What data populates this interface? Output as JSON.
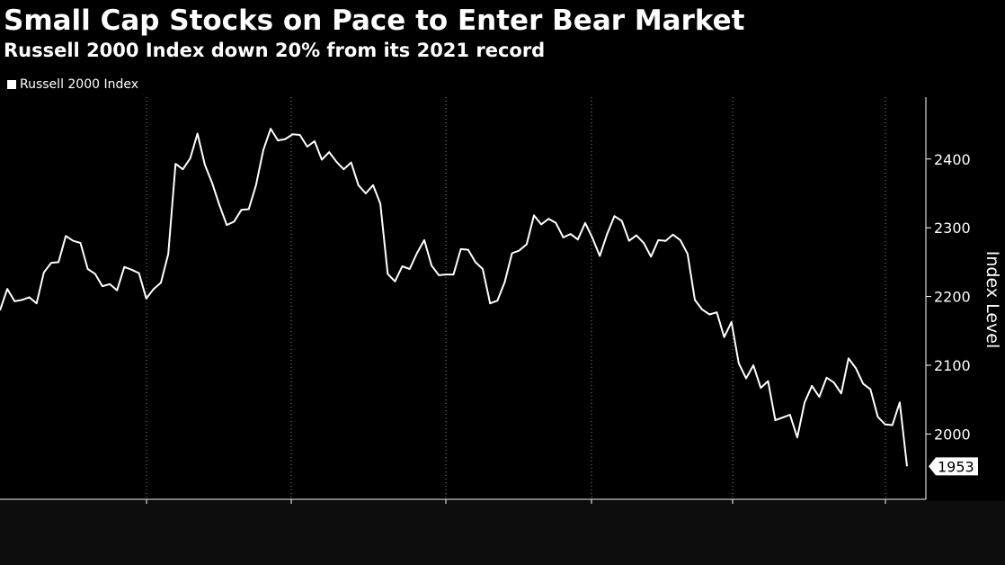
{
  "header": {
    "title": "Small Cap Stocks on Pace to Enter Bear Market",
    "subtitle": "Russell 2000 Index down 20% from its 2021 record"
  },
  "colors": {
    "background": "#000000",
    "line": "#ffffff",
    "grid": "#8a8a8a"
  },
  "chart_data": {
    "type": "line",
    "title": "Small Cap Stocks on Pace to Enter Bear Market",
    "subtitle": "Russell 2000 Index down 20% from its 2021 record",
    "ylabel": "Index Level",
    "xlabel": "",
    "ylim": [
      1905,
      2490
    ],
    "y_ticks": [
      2000,
      2100,
      2200,
      2300,
      2400
    ],
    "y_axis_position": "right",
    "x_axis_labels_shown": false,
    "x_gridline_count": 6,
    "grid": {
      "x": true,
      "y": false,
      "style": "dotted"
    },
    "legend": {
      "position": "top-left",
      "entries": [
        "Russell 2000 Index"
      ]
    },
    "last_value_label": "1953",
    "series": [
      {
        "name": "Russell 2000 Index",
        "values": [
          2180,
          2211,
          2193,
          2195,
          2199,
          2190,
          2235,
          2249,
          2250,
          2288,
          2281,
          2278,
          2240,
          2233,
          2215,
          2218,
          2209,
          2243,
          2239,
          2234,
          2197,
          2211,
          2220,
          2262,
          2393,
          2385,
          2401,
          2437,
          2392,
          2365,
          2333,
          2304,
          2309,
          2326,
          2327,
          2362,
          2413,
          2444,
          2427,
          2429,
          2436,
          2435,
          2418,
          2426,
          2399,
          2410,
          2396,
          2385,
          2395,
          2362,
          2350,
          2362,
          2335,
          2233,
          2222,
          2244,
          2240,
          2263,
          2282,
          2245,
          2231,
          2232,
          2232,
          2269,
          2268,
          2250,
          2240,
          2190,
          2194,
          2221,
          2263,
          2267,
          2276,
          2318,
          2305,
          2313,
          2307,
          2286,
          2291,
          2283,
          2307,
          2285,
          2259,
          2291,
          2317,
          2310,
          2281,
          2289,
          2278,
          2258,
          2282,
          2281,
          2290,
          2282,
          2262,
          2195,
          2181,
          2174,
          2177,
          2141,
          2163,
          2103,
          2081,
          2100,
          2067,
          2077,
          2020,
          2024,
          2028,
          1995,
          2046,
          2070,
          2054,
          2082,
          2075,
          2059,
          2110,
          2096,
          2073,
          2065,
          2025,
          2014,
          2013,
          2046,
          1953
        ]
      }
    ]
  }
}
